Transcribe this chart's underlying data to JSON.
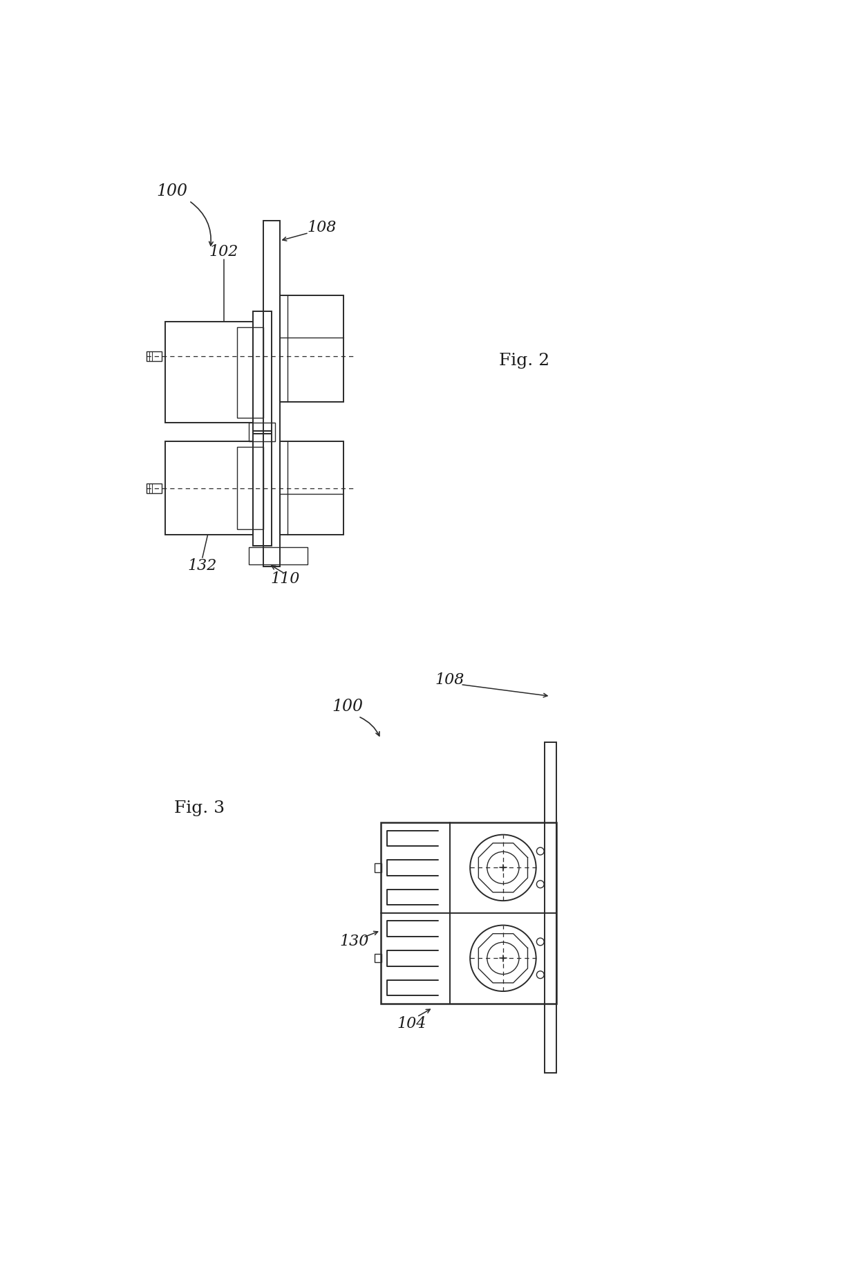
{
  "bg_color": "#ffffff",
  "fig_width": 12.4,
  "fig_height": 18.23,
  "fig2_label": "Fig. 2",
  "fig3_label": "Fig. 3",
  "labels": {
    "100_fig2": "100",
    "102_fig2": "102",
    "108_fig2": "108",
    "132_fig2": "132",
    "110_fig2": "110",
    "100_fig3": "100",
    "108_fig3": "108",
    "130_fig3": "130",
    "104_fig3": "104"
  },
  "line_color": "#2a2a2a",
  "label_color": "#1a1a1a"
}
